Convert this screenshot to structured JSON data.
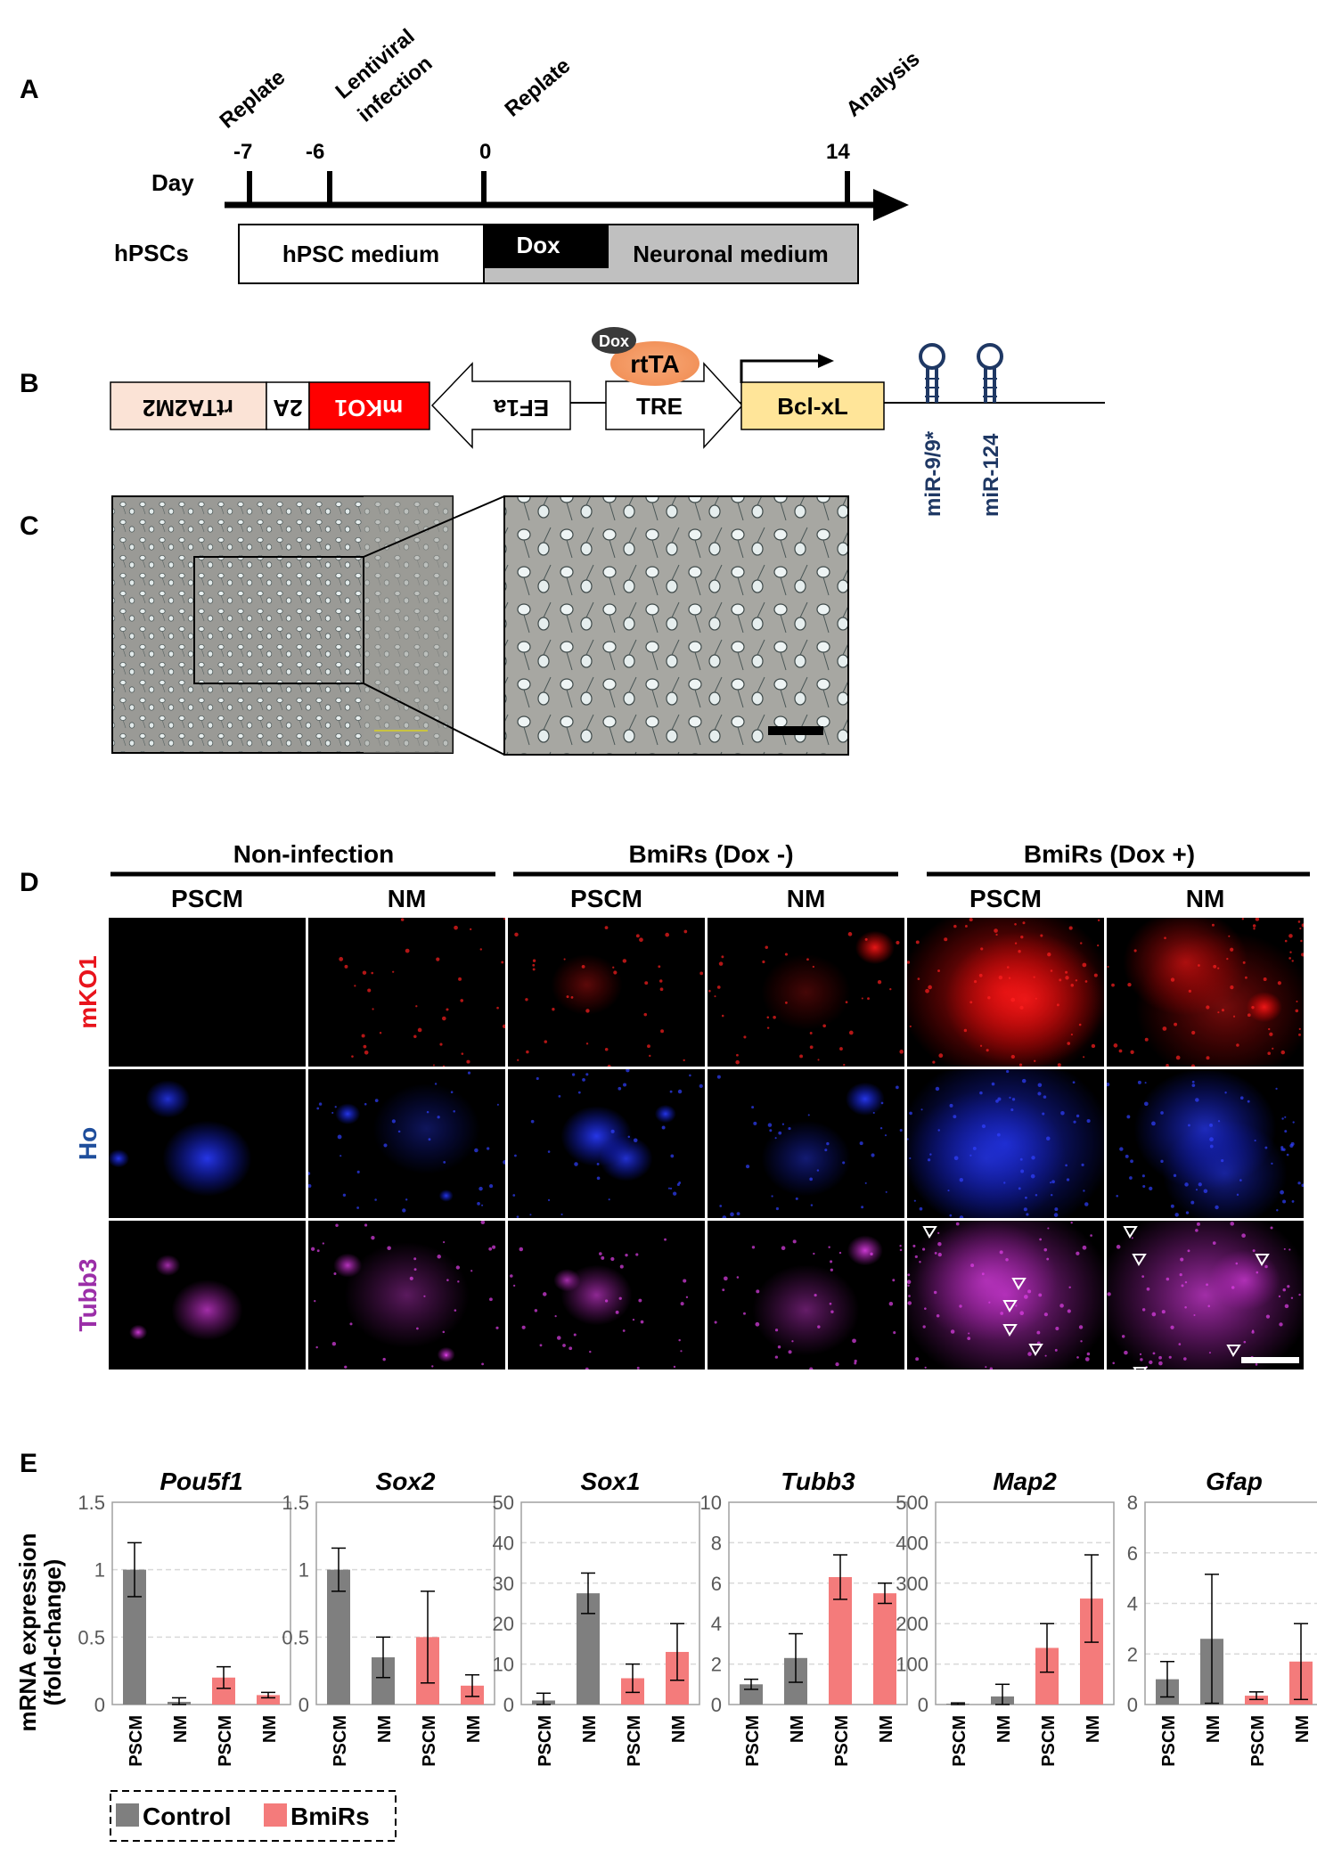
{
  "panel_labels": [
    "A",
    "B",
    "C",
    "D",
    "E"
  ],
  "panelA": {
    "day_label": "Day",
    "row_label": "hPSCs",
    "events": [
      {
        "text": "Replate",
        "day": "-7"
      },
      {
        "text": "Lentiviral infection",
        "day": "-6"
      },
      {
        "text": "Replate",
        "day": "0"
      },
      {
        "text": "Analysis",
        "day": "14"
      }
    ],
    "lentiviral_line1": "Lentiviral",
    "lentiviral_line2": "infection",
    "bars": {
      "hpsc_medium": "hPSC medium",
      "dox": "Dox",
      "neuronal_medium": "Neuronal medium"
    }
  },
  "panelB": {
    "rtTA2M2": "rtTA2M2",
    "2A": "2A",
    "mKO1": "mKO1",
    "EF1a": "EF1a",
    "TRE": "TRE",
    "rtTA": "rtTA",
    "dox": "Dox",
    "bclxl": "Bcl-xL",
    "mir1": "miR-9/9*",
    "mir2": "miR-124"
  },
  "panelD": {
    "groups": [
      "Non-infection",
      "BmiRs (Dox -)",
      "BmiRs (Dox +)"
    ],
    "columns": [
      "PSCM",
      "NM",
      "PSCM",
      "NM",
      "PSCM",
      "NM"
    ],
    "rows": [
      {
        "label": "mKO1",
        "color": "#e8141c"
      },
      {
        "label": "Ho",
        "color": "#1f4e9c"
      },
      {
        "label": "Tubb3",
        "color": "#9b2ea8"
      }
    ]
  },
  "colors": {
    "control": "#7f7f7f",
    "bmirs": "#f47b7b"
  },
  "legend": {
    "control": "Control",
    "bmirs": "BmiRs"
  },
  "chart_ylabel_line1": "mRNA expression",
  "chart_ylabel_line2": "(fold-change)",
  "chart_data": [
    {
      "type": "bar",
      "title": "Pou5f1",
      "categories": [
        "PSCM",
        "NM",
        "PSCM",
        "NM"
      ],
      "groups": [
        "Control",
        "Control",
        "BmiRs",
        "BmiRs"
      ],
      "values": [
        1.0,
        0.02,
        0.2,
        0.07
      ],
      "errors": [
        0.2,
        0.03,
        0.08,
        0.02
      ],
      "ylim": [
        0,
        1.5
      ],
      "yticks": [
        "0",
        "0.5",
        "1",
        "1.5"
      ]
    },
    {
      "type": "bar",
      "title": "Sox2",
      "categories": [
        "PSCM",
        "NM",
        "PSCM",
        "NM"
      ],
      "groups": [
        "Control",
        "Control",
        "BmiRs",
        "BmiRs"
      ],
      "values": [
        1.0,
        0.35,
        0.5,
        0.14
      ],
      "errors": [
        0.16,
        0.15,
        0.34,
        0.08
      ],
      "ylim": [
        0,
        1.5
      ],
      "yticks": [
        "0",
        "0.5",
        "1",
        "1.5"
      ]
    },
    {
      "type": "bar",
      "title": "Sox1",
      "categories": [
        "PSCM",
        "NM",
        "PSCM",
        "NM"
      ],
      "groups": [
        "Control",
        "Control",
        "BmiRs",
        "BmiRs"
      ],
      "values": [
        1.0,
        27.5,
        6.5,
        13.0
      ],
      "errors": [
        1.8,
        5.0,
        3.5,
        7.0
      ],
      "ylim": [
        0,
        50
      ],
      "yticks": [
        "0",
        "10",
        "20",
        "30",
        "40",
        "50"
      ]
    },
    {
      "type": "bar",
      "title": "Tubb3",
      "categories": [
        "PSCM",
        "NM",
        "PSCM",
        "NM"
      ],
      "groups": [
        "Control",
        "Control",
        "BmiRs",
        "BmiRs"
      ],
      "values": [
        1.0,
        2.3,
        6.3,
        5.5
      ],
      "errors": [
        0.25,
        1.2,
        1.1,
        0.5
      ],
      "ylim": [
        0,
        10
      ],
      "yticks": [
        "0",
        "2",
        "4",
        "6",
        "8",
        "10"
      ]
    },
    {
      "type": "bar",
      "title": "Map2",
      "categories": [
        "PSCM",
        "NM",
        "PSCM",
        "NM"
      ],
      "groups": [
        "Control",
        "Control",
        "BmiRs",
        "BmiRs"
      ],
      "values": [
        2,
        20,
        140,
        262
      ],
      "errors": [
        2,
        30,
        60,
        108
      ],
      "ylim": [
        0,
        500
      ],
      "yticks": [
        "0",
        "100",
        "200",
        "300",
        "400",
        "500"
      ]
    },
    {
      "type": "bar",
      "title": "Gfap",
      "categories": [
        "PSCM",
        "NM",
        "PSCM",
        "NM"
      ],
      "groups": [
        "Control",
        "Control",
        "BmiRs",
        "BmiRs"
      ],
      "values": [
        1.0,
        2.6,
        0.35,
        1.7
      ],
      "errors": [
        0.7,
        2.55,
        0.15,
        1.5
      ],
      "ylim": [
        0,
        8
      ],
      "yticks": [
        "0",
        "2",
        "4",
        "6",
        "8"
      ]
    }
  ]
}
